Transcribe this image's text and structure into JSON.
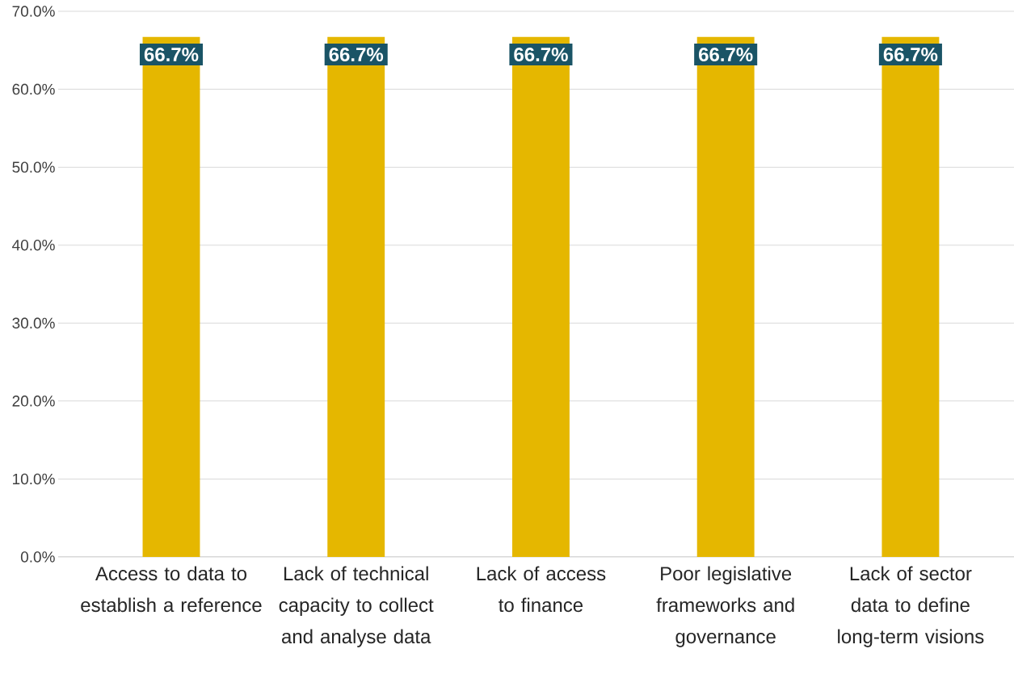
{
  "chart_data": {
    "type": "bar",
    "categories": [
      "Access to data to establish a reference",
      "Lack of technical capacity to collect and analyse data",
      "Lack of access to finance",
      "Poor legislative frameworks and governance",
      "Lack of sector data to define long-term visions"
    ],
    "values": [
      66.7,
      66.7,
      66.7,
      66.7,
      66.7
    ],
    "value_labels": [
      "66.7%",
      "66.7%",
      "66.7%",
      "66.7%",
      "66.7%"
    ],
    "color": "#e5b700",
    "ylim": [
      0,
      70
    ],
    "yticks": [
      {
        "value": 0,
        "label": "0.0%"
      },
      {
        "value": 10,
        "label": "10.0%"
      },
      {
        "value": 20,
        "label": "20.0%"
      },
      {
        "value": 30,
        "label": "30.0%"
      },
      {
        "value": 40,
        "label": "40.0%"
      },
      {
        "value": 50,
        "label": "50.0%"
      },
      {
        "value": 60,
        "label": "60.0%"
      },
      {
        "value": 70,
        "label": "70.0%"
      }
    ],
    "grid": "y"
  }
}
